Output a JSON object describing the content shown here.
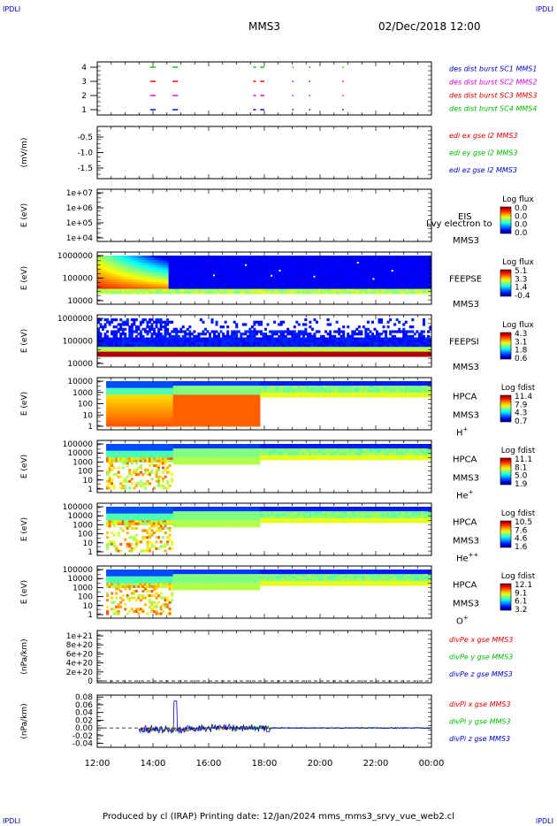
{
  "header": {
    "corner_label": "IPDLI",
    "spacecraft": "MMS3",
    "datetime": "02/Dec/2018 12:00"
  },
  "footer": {
    "text": "Produced by cl (IRAP)   Printing date: 12/Jan/2024   mms_mms3_srvy_vue_web2.cl"
  },
  "colors": {
    "red": "#dd0000",
    "green": "#00bb00",
    "blue": "#0000cc",
    "magenta": "#dd00dd"
  },
  "chart_data": {
    "type": "heatmap",
    "x_ticks": [
      "12:00",
      "14:00",
      "16:00",
      "18:00",
      "20:00",
      "22:00",
      "00:00"
    ],
    "panels": [
      {
        "id": "burst",
        "y_ticks": [
          "4",
          "3",
          "2",
          "1"
        ],
        "legend": [
          {
            "text": "des dist burst SC1 MMS1",
            "color": "blue"
          },
          {
            "text": "des dist burst SC2 MMS2",
            "color": "magenta"
          },
          {
            "text": "des dist burst SC3 MMS3",
            "color": "red"
          },
          {
            "text": "des dist burst SC4 MMS4",
            "color": "green"
          }
        ],
        "burst_intervals_hours": [
          [
            13.9,
            14.1
          ],
          [
            14.7,
            14.9
          ],
          [
            17.6,
            17.7
          ],
          [
            17.85,
            18.0
          ],
          [
            19.0,
            19.05
          ],
          [
            19.6,
            19.65
          ],
          [
            20.8,
            20.85
          ]
        ]
      },
      {
        "id": "edi",
        "ylabel": "(mV/m)",
        "y_ticks": [
          "-0.5",
          "-1.0",
          "-1.5"
        ],
        "legend": [
          {
            "text": "edi ex gse l2 MMS3",
            "color": "red"
          },
          {
            "text": "edi ey gse l2 MMS3",
            "color": "green"
          },
          {
            "text": "edi ez gse l2 MMS3",
            "color": "blue"
          }
        ]
      },
      {
        "id": "eis",
        "ylabel": "E (eV)",
        "y_ticks": [
          "1e+07",
          "1e+06",
          "1e+05",
          "1e+04"
        ],
        "instrument": "EIS",
        "species": "Lvy electron to",
        "spacecraft": "MMS3",
        "cbar_title": "Log flux",
        "cbar_ticks": [
          "0.0",
          "0.0",
          "0.0",
          "0.0"
        ]
      },
      {
        "id": "feepse",
        "ylabel": "E (eV)",
        "y_ticks": [
          "1000000",
          "100000",
          "10000"
        ],
        "instrument": "FEEPSE",
        "spacecraft": "MMS3",
        "cbar_title": "Log flux",
        "cbar_ticks": [
          "5.1",
          "3.3",
          "1.4",
          "-0.4"
        ]
      },
      {
        "id": "feepsi",
        "ylabel": "E (eV)",
        "y_ticks": [
          "1000000",
          "100000",
          "10000"
        ],
        "instrument": "FEEPSI",
        "spacecraft": "MMS3",
        "cbar_title": "Log flux",
        "cbar_ticks": [
          "4.3",
          "3.1",
          "1.8",
          "0.6"
        ]
      },
      {
        "id": "hpca_h",
        "ylabel": "E (eV)",
        "y_ticks": [
          "10000",
          "1000",
          "100",
          "10",
          "1"
        ],
        "instrument": "HPCA",
        "spacecraft": "MMS3",
        "species": "H",
        "charge": "+",
        "cbar_title": "Log fdist",
        "cbar_ticks": [
          "11.4",
          "7.9",
          "4.3",
          "0.7"
        ]
      },
      {
        "id": "hpca_he",
        "ylabel": "E (eV)",
        "y_ticks": [
          "100000",
          "10000",
          "1000",
          "100",
          "10",
          "1"
        ],
        "instrument": "HPCA",
        "spacecraft": "MMS3",
        "species": "He",
        "charge": "+",
        "cbar_title": "Log fdist",
        "cbar_ticks": [
          "11.1",
          "8.1",
          "5.0",
          "1.9"
        ]
      },
      {
        "id": "hpca_hepp",
        "ylabel": "E (eV)",
        "y_ticks": [
          "100000",
          "10000",
          "1000",
          "100",
          "10",
          "1"
        ],
        "instrument": "HPCA",
        "spacecraft": "MMS3",
        "species": "He",
        "charge": "++",
        "cbar_title": "Log fdist",
        "cbar_ticks": [
          "10.5",
          "7.6",
          "4.6",
          "1.6"
        ]
      },
      {
        "id": "hpca_o",
        "ylabel": "E (eV)",
        "y_ticks": [
          "100000",
          "10000",
          "1000",
          "100",
          "10",
          "1"
        ],
        "instrument": "HPCA",
        "spacecraft": "MMS3",
        "species": "O",
        "charge": "+",
        "cbar_title": "Log fdist",
        "cbar_ticks": [
          "12.1",
          "9.1",
          "6.1",
          "3.2"
        ]
      },
      {
        "id": "divpe",
        "ylabel": "(nPa/km)",
        "y_ticks": [
          "1e+21",
          "8e+20",
          "6e+20",
          "4e+20",
          "2e+20",
          "0"
        ],
        "legend": [
          {
            "text": "divPe x gse MMS3",
            "color": "red"
          },
          {
            "text": "divPe y gse MMS3",
            "color": "green"
          },
          {
            "text": "divPe z gse MMS3",
            "color": "blue"
          }
        ]
      },
      {
        "id": "divpi",
        "ylabel": "(nPa/km)",
        "y_ticks": [
          "0.08",
          "0.06",
          "0.04",
          "0.02",
          "0.00",
          "-0.02",
          "-0.04"
        ],
        "y_range": [
          -0.05,
          0.085
        ],
        "legend": [
          {
            "text": "divPi x gse MMS3",
            "color": "red"
          },
          {
            "text": "divPi y gse MMS3",
            "color": "green"
          },
          {
            "text": "divPi z gse MMS3",
            "color": "blue"
          }
        ]
      }
    ]
  }
}
